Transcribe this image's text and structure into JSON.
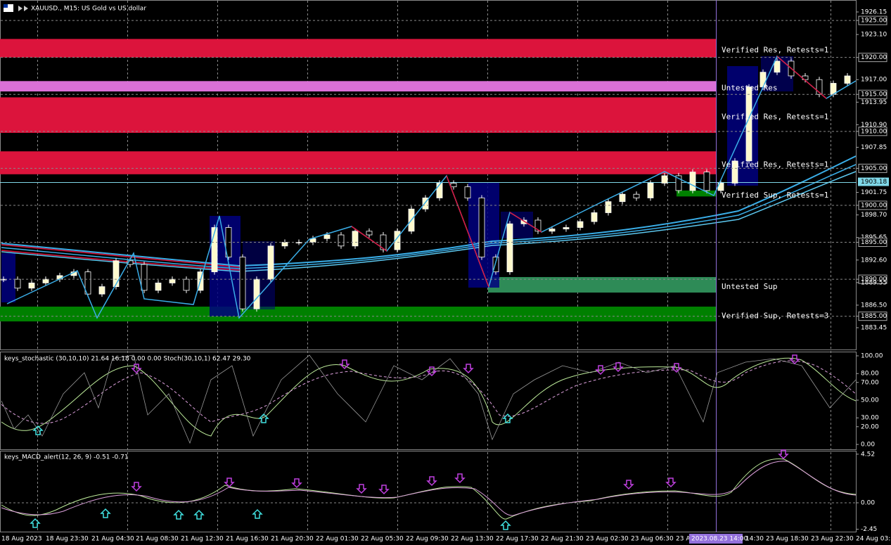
{
  "header": {
    "title": "XAUUSD., M15: US Gold vs US dollar"
  },
  "price_axis": {
    "ticks": [
      {
        "value": 1926.15,
        "label": "1926.15",
        "boxed": false
      },
      {
        "value": 1925,
        "label": "1925.00",
        "boxed": true
      },
      {
        "value": 1923.1,
        "label": "1923.10",
        "boxed": false
      },
      {
        "value": 1920,
        "label": "1920.00",
        "boxed": true
      },
      {
        "value": 1917,
        "label": "1917.00",
        "boxed": false
      },
      {
        "value": 1915,
        "label": "1915.00",
        "boxed": true
      },
      {
        "value": 1913.95,
        "label": "1913.95",
        "boxed": false
      },
      {
        "value": 1910.9,
        "label": "1910.90",
        "boxed": false
      },
      {
        "value": 1910,
        "label": "1910.00",
        "boxed": true
      },
      {
        "value": 1907.85,
        "label": "1907.85",
        "boxed": false
      },
      {
        "value": 1905,
        "label": "1905.00",
        "boxed": true
      },
      {
        "value": 1901.75,
        "label": "1901.75",
        "boxed": false
      },
      {
        "value": 1900,
        "label": "1900.00",
        "boxed": true
      },
      {
        "value": 1898.7,
        "label": "1898.70",
        "boxed": false
      },
      {
        "value": 1895.65,
        "label": "1895.65",
        "boxed": false
      },
      {
        "value": 1895,
        "label": "1895.00",
        "boxed": true
      },
      {
        "value": 1892.6,
        "label": "1892.60",
        "boxed": false
      },
      {
        "value": 1890,
        "label": "1890.00",
        "boxed": true
      },
      {
        "value": 1889.55,
        "label": "1889.55",
        "boxed": false
      },
      {
        "value": 1886.5,
        "label": "1886.50",
        "boxed": false
      },
      {
        "value": 1885,
        "label": "1885.00",
        "boxed": true
      },
      {
        "value": 1883.45,
        "label": "1883.45",
        "boxed": false
      }
    ],
    "current": {
      "value": 1903.18,
      "label": "1903.18"
    }
  },
  "zones": [
    {
      "label": "Verified Res, Retests=1",
      "top": 1922.5,
      "bottom": 1920,
      "color": "#dc143c"
    },
    {
      "label": "Untested Res",
      "top": 1916.8,
      "bottom": 1915.4,
      "color": "#da70d6"
    },
    {
      "label": "Verified Res, Retests=1",
      "top": 1914.6,
      "bottom": 1909.8,
      "color": "#dc143c"
    },
    {
      "label": "Verified Res, Retests=1",
      "top": 1907.3,
      "bottom": 1904.2,
      "color": "#dc143c"
    },
    {
      "label": "Verified Sup, Retests=1",
      "top": 1902,
      "bottom": 1901.2,
      "color": "#008000"
    },
    {
      "label": "Untested Sup",
      "top": 1890.3,
      "bottom": 1888.2,
      "color": "#2e8b57"
    },
    {
      "label": "Verified Sup, Retests=3",
      "top": 1886.3,
      "bottom": 1884.3,
      "color": "#008000"
    }
  ],
  "closes": [
    1890,
    1888.8,
    1889.5,
    1890,
    1890.5,
    1891,
    1888,
    1889,
    1892.5,
    1892,
    1888.5,
    1889.5,
    1890,
    1888.5,
    1891,
    1897,
    1893,
    1886,
    1890,
    1894.5,
    1895,
    1895,
    1895.5,
    1896,
    1894.5,
    1896.5,
    1896,
    1894,
    1896.5,
    1899.5,
    1901,
    1903,
    1902.5,
    1901,
    1893,
    1891,
    1897.5,
    1898,
    1896.5,
    1896.8,
    1897,
    1897.8,
    1899,
    1900.5,
    1901.5,
    1901,
    1903,
    1904,
    1902,
    1904.5,
    1902,
    1903,
    1906,
    1916,
    1918,
    1919.5,
    1917.5,
    1917,
    1915,
    1916.5,
    1917.5
  ],
  "stochastic": {
    "label": "keys_stochastic (30,10,10) 21.64 16.18 0.00 0.00 Stoch(30,10,1) 62.47 29.30",
    "ticks": [
      {
        "value": 100,
        "label": "100.00"
      },
      {
        "value": 80,
        "label": "80.00"
      },
      {
        "value": 70,
        "label": "70.00"
      },
      {
        "value": 50,
        "label": "50.00"
      },
      {
        "value": 30,
        "label": "30.00"
      },
      {
        "value": 20,
        "label": "20.00"
      },
      {
        "value": 0,
        "label": "0.00"
      }
    ]
  },
  "macd": {
    "label": "keys_MACD_alert(12, 26, 9) -0.51 -0.71",
    "ticks": [
      {
        "value": 4.52,
        "label": "4.52"
      },
      {
        "value": 0,
        "label": "0.00"
      },
      {
        "value": -2.45,
        "label": "-2.45"
      }
    ]
  },
  "time_axis": {
    "labels": [
      "18 Aug 2023",
      "18 Aug 23:30",
      "21 Aug 04:30",
      "21 Aug 08:30",
      "21 Aug 12:30",
      "21 Aug 16:30",
      "21 Aug 20:30",
      "22 Aug 01:30",
      "22 Aug 05:30",
      "22 Aug 09:30",
      "22 Aug 13:30",
      "22 Aug 17:30",
      "22 Aug 21:30",
      "23 Aug 02:30",
      "23 Aug 06:30",
      "23 A",
      "14:30",
      "23 Aug 18:30",
      "23 Aug 22:30",
      "24 Aug 03:30"
    ],
    "crosshair": "2023.08.23 14:00"
  }
}
